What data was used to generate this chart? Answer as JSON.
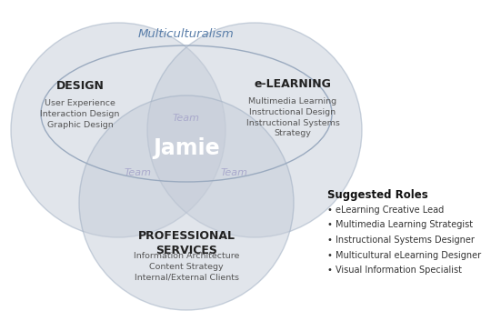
{
  "background_color": "#ffffff",
  "circle_facecolor": "#c5ccd8",
  "circle_alpha": 0.5,
  "circle_edgecolor": "#9aaabf",
  "circle_linewidth": 1.0,
  "ellipse_edgecolor": "#9aaabf",
  "ellipse_linewidth": 1.0,
  "title": "Multiculturalism",
  "title_color": "#5b7faa",
  "title_fontsize": 9.5,
  "title_fontstyle": "italic",
  "label_fontsize": 9,
  "label_color": "#222222",
  "skills_fontsize": 6.8,
  "skills_color": "#555555",
  "jamie_fontsize": 17,
  "jamie_color": "#ffffff",
  "jamie_fontweight": "bold",
  "team_fontsize": 8,
  "team_color": "#aaaacc",
  "team_fontstyle": "italic",
  "suggested_title_fontsize": 8.5,
  "suggested_title_color": "#111111",
  "suggested_item_fontsize": 7.0,
  "suggested_item_color": "#333333",
  "suggested_roles_items": [
    "• eLearning Creative Lead",
    "• Multimedia Learning Strategist",
    "• Instructional Systems Designer",
    "• Multicultural eLearning Designer",
    "• Visual Information Specialist"
  ]
}
